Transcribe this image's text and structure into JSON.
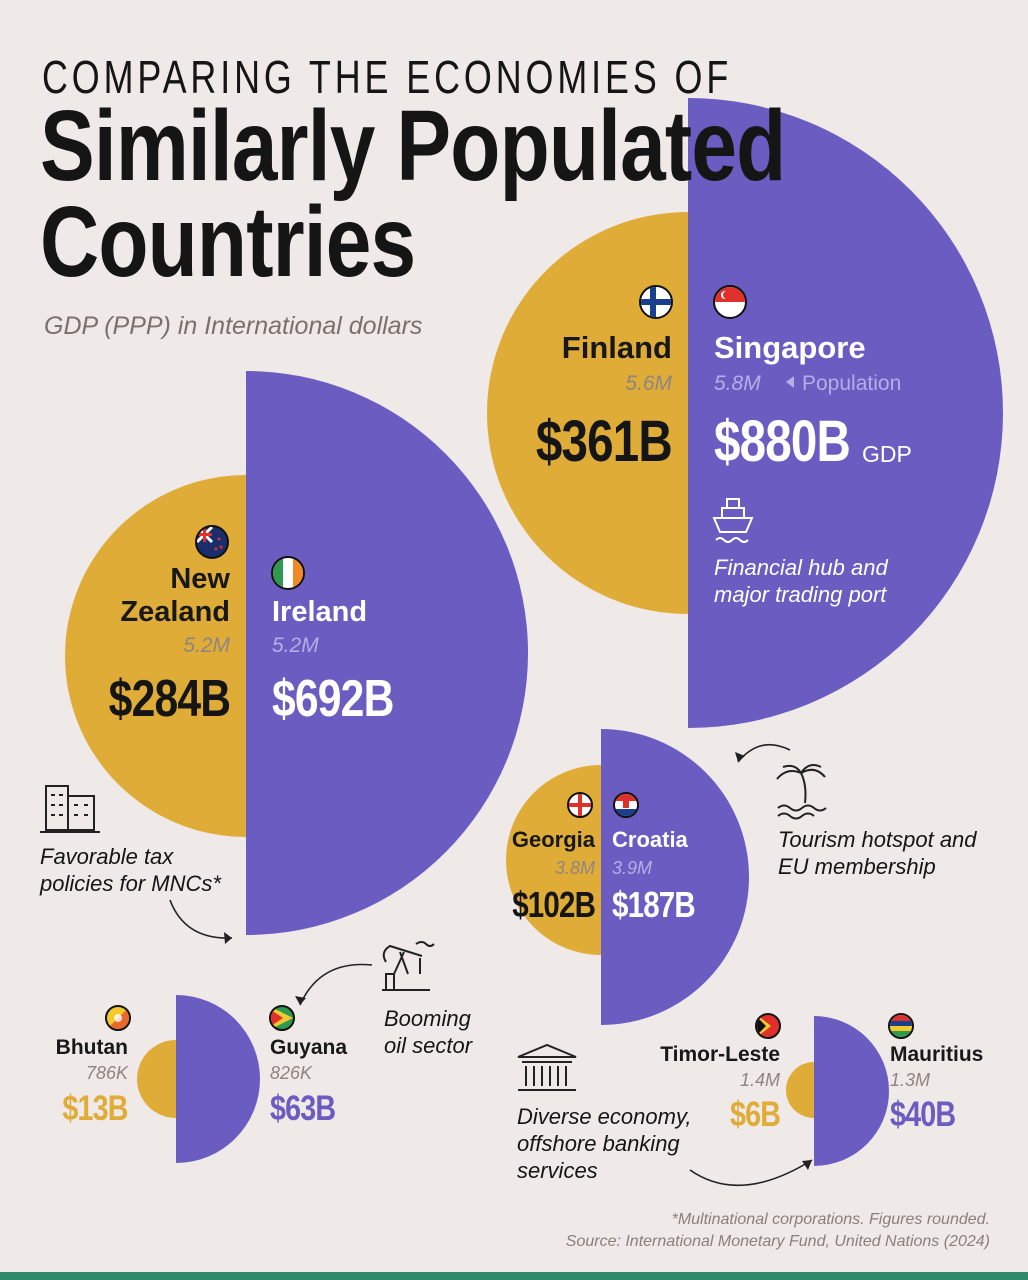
{
  "header": {
    "kicker": "COMPARING THE ECONOMIES OF",
    "title_line1": "Similarly Populated",
    "title_line2": "Countries",
    "subtitle": "GDP (PPP) in International dollars"
  },
  "colors": {
    "background": "#efe9e7",
    "gold": "#e0ac38",
    "purple": "#6a5cc0",
    "text": "#151515"
  },
  "pairs": [
    {
      "left": {
        "name": "Finland",
        "population": "5.6M",
        "gdp": "$361B",
        "flag_icon": "finland-flag-icon"
      },
      "right": {
        "name": "Singapore",
        "population": "5.8M",
        "gdp": "$880B",
        "gdp_suffix": "GDP",
        "population_label": "Population",
        "flag_icon": "singapore-flag-icon"
      },
      "note": [
        "Financial hub and",
        "major trading port"
      ],
      "note_icon": "ship-icon"
    },
    {
      "left": {
        "name_line1": "New",
        "name_line2": "Zealand",
        "population": "5.2M",
        "gdp": "$284B",
        "flag_icon": "new-zealand-flag-icon"
      },
      "right": {
        "name": "Ireland",
        "population": "5.2M",
        "gdp": "$692B",
        "flag_icon": "ireland-flag-icon"
      },
      "note": [
        "Favorable tax",
        "policies for MNCs*"
      ],
      "note_icon": "office-building-icon"
    },
    {
      "left": {
        "name": "Georgia",
        "population": "3.8M",
        "gdp": "$102B",
        "flag_icon": "georgia-flag-icon"
      },
      "right": {
        "name": "Croatia",
        "population": "3.9M",
        "gdp": "$187B",
        "flag_icon": "croatia-flag-icon"
      },
      "note": [
        "Tourism hotspot and",
        "EU membership"
      ],
      "note_icon": "palm-tree-icon"
    },
    {
      "left": {
        "name": "Bhutan",
        "population": "786K",
        "gdp": "$13B",
        "flag_icon": "bhutan-flag-icon"
      },
      "right": {
        "name": "Guyana",
        "population": "826K",
        "gdp": "$63B",
        "flag_icon": "guyana-flag-icon"
      },
      "note": [
        "Booming",
        "oil sector"
      ],
      "note_icon": "oil-pump-icon"
    },
    {
      "left": {
        "name": "Timor-Leste",
        "population": "1.4M",
        "gdp": "$6B",
        "flag_icon": "timor-leste-flag-icon"
      },
      "right": {
        "name": "Mauritius",
        "population": "1.3M",
        "gdp": "$40B",
        "flag_icon": "mauritius-flag-icon"
      },
      "note": [
        "Diverse economy,",
        "offshore banking",
        "services"
      ],
      "note_icon": "bank-building-icon"
    }
  ],
  "footer": {
    "line1": "*Multinational corporations. Figures rounded.",
    "line2": "Source: International Monetary Fund, United Nations (2024)"
  }
}
